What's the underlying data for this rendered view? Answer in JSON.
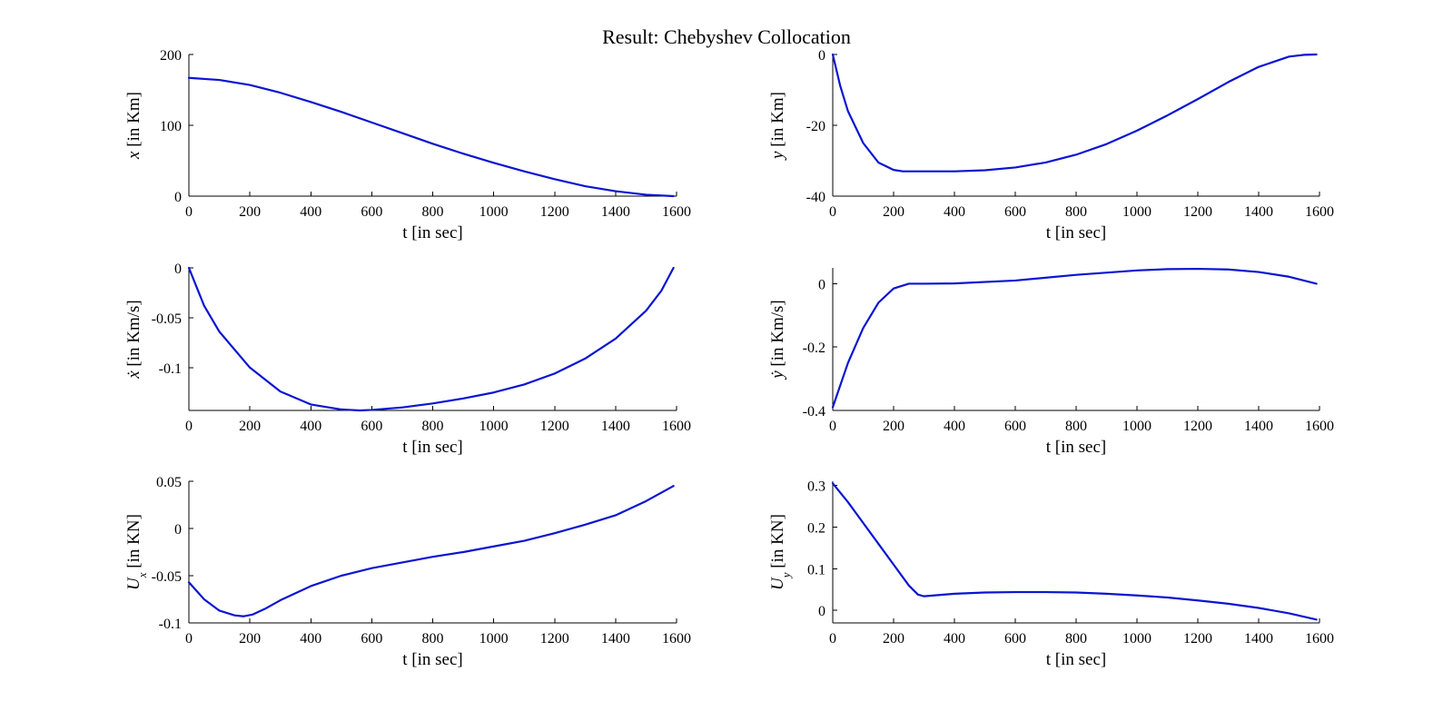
{
  "figure": {
    "title": "Result: Chebyshev Collocation",
    "line_color": "#0a14d2"
  },
  "chart_data": [
    {
      "type": "line",
      "xlabel": "t [in sec]",
      "ylabel": "x [in Km]",
      "ylabel_parts": [
        {
          "t": "x",
          "i": true
        },
        {
          "t": " [in Km]"
        }
      ],
      "xlim": [
        0,
        1600
      ],
      "ylim": [
        0,
        200
      ],
      "xticks": [
        0,
        200,
        400,
        600,
        800,
        1000,
        1200,
        1400,
        1600
      ],
      "yticks": [
        0,
        100,
        200
      ],
      "ytick_labels": [
        "0",
        "100",
        "200"
      ],
      "grid": false,
      "series": [
        {
          "x": [
            0,
            100,
            200,
            300,
            400,
            500,
            600,
            700,
            800,
            900,
            1000,
            1100,
            1200,
            1300,
            1400,
            1500,
            1590
          ],
          "y": [
            167,
            164,
            157,
            146,
            133,
            119,
            104,
            89,
            74,
            60,
            47,
            35,
            24,
            14,
            7,
            2,
            0
          ]
        }
      ]
    },
    {
      "type": "line",
      "xlabel": "t [in sec]",
      "ylabel": "y [in Km]",
      "ylabel_parts": [
        {
          "t": "y",
          "i": true
        },
        {
          "t": " [in Km]"
        }
      ],
      "xlim": [
        0,
        1600
      ],
      "ylim": [
        -40,
        0
      ],
      "xticks": [
        0,
        200,
        400,
        600,
        800,
        1000,
        1200,
        1400,
        1600
      ],
      "yticks": [
        -40,
        -20,
        0
      ],
      "ytick_labels": [
        "-40",
        "-20",
        "0"
      ],
      "grid": false,
      "series": [
        {
          "x": [
            0,
            25,
            50,
            100,
            150,
            200,
            230,
            300,
            400,
            500,
            600,
            700,
            800,
            900,
            1000,
            1100,
            1200,
            1300,
            1400,
            1500,
            1550,
            1590
          ],
          "y": [
            0,
            -9,
            -16,
            -25,
            -30.5,
            -32.6,
            -33,
            -33,
            -33,
            -32.7,
            -31.9,
            -30.5,
            -28.3,
            -25.3,
            -21.5,
            -17.2,
            -12.6,
            -7.8,
            -3.5,
            -0.6,
            -0.1,
            0
          ]
        }
      ]
    },
    {
      "type": "line",
      "xlabel": "t [in sec]",
      "ylabel": "ẋ [in Km/s]",
      "ylabel_parts": [
        {
          "t": "ẋ",
          "i": true
        },
        {
          "t": " [in Km/s]"
        }
      ],
      "xlim": [
        0,
        1600
      ],
      "ylim": [
        -0.143,
        0
      ],
      "xticks": [
        0,
        200,
        400,
        600,
        800,
        1000,
        1200,
        1400,
        1600
      ],
      "yticks": [
        -0.1,
        -0.05,
        0
      ],
      "ytick_labels": [
        "-0.1",
        "-0.05",
        "0"
      ],
      "grid": false,
      "series": [
        {
          "x": [
            0,
            50,
            100,
            200,
            300,
            400,
            500,
            560,
            600,
            700,
            800,
            900,
            1000,
            1100,
            1200,
            1300,
            1400,
            1500,
            1550,
            1590
          ],
          "y": [
            0,
            -0.038,
            -0.064,
            -0.1,
            -0.124,
            -0.137,
            -0.142,
            -0.143,
            -0.1425,
            -0.14,
            -0.136,
            -0.131,
            -0.125,
            -0.117,
            -0.106,
            -0.091,
            -0.071,
            -0.043,
            -0.023,
            0
          ]
        }
      ]
    },
    {
      "type": "line",
      "xlabel": "t [in sec]",
      "ylabel": "ẏ [in Km/s]",
      "ylabel_parts": [
        {
          "t": "ẏ",
          "i": true
        },
        {
          "t": " [in Km/s]"
        }
      ],
      "xlim": [
        0,
        1600
      ],
      "ylim": [
        -0.4,
        0.05
      ],
      "xticks": [
        0,
        200,
        400,
        600,
        800,
        1000,
        1200,
        1400,
        1600
      ],
      "yticks": [
        -0.4,
        -0.2,
        0
      ],
      "ytick_labels": [
        "-0.4",
        "-0.2",
        "0"
      ],
      "grid": false,
      "series": [
        {
          "x": [
            0,
            50,
            100,
            150,
            200,
            250,
            300,
            400,
            600,
            800,
            1000,
            1100,
            1200,
            1300,
            1400,
            1500,
            1590
          ],
          "y": [
            -0.39,
            -0.25,
            -0.14,
            -0.06,
            -0.015,
            0,
            0,
            0.001,
            0.01,
            0.028,
            0.042,
            0.046,
            0.047,
            0.045,
            0.037,
            0.022,
            0
          ]
        }
      ]
    },
    {
      "type": "line",
      "xlabel": "t [in sec]",
      "ylabel": "Ux [in KN]",
      "ylabel_parts": [
        {
          "t": "U",
          "i": true
        },
        {
          "t": "x",
          "i": true,
          "sub": true
        },
        {
          "t": " [in KN]"
        }
      ],
      "xlim": [
        0,
        1600
      ],
      "ylim": [
        -0.1,
        0.05
      ],
      "xticks": [
        0,
        200,
        400,
        600,
        800,
        1000,
        1200,
        1400,
        1600
      ],
      "yticks": [
        -0.1,
        -0.05,
        0,
        0.05
      ],
      "ytick_labels": [
        "-0.1",
        "-0.05",
        "0",
        "0.05"
      ],
      "grid": false,
      "series": [
        {
          "x": [
            0,
            50,
            100,
            150,
            180,
            210,
            250,
            300,
            400,
            500,
            600,
            700,
            800,
            900,
            1000,
            1100,
            1200,
            1300,
            1400,
            1500,
            1590
          ],
          "y": [
            -0.057,
            -0.075,
            -0.087,
            -0.092,
            -0.093,
            -0.091,
            -0.085,
            -0.076,
            -0.061,
            -0.05,
            -0.042,
            -0.036,
            -0.03,
            -0.025,
            -0.019,
            -0.013,
            -0.005,
            0.004,
            0.014,
            0.029,
            0.045
          ]
        }
      ]
    },
    {
      "type": "line",
      "xlabel": "t [in sec]",
      "ylabel": "Uy [in KN]",
      "ylabel_parts": [
        {
          "t": "U",
          "i": true
        },
        {
          "t": "y",
          "i": true,
          "sub": true
        },
        {
          "t": " [in KN]"
        }
      ],
      "xlim": [
        0,
        1600
      ],
      "ylim": [
        -0.03,
        0.31
      ],
      "xticks": [
        0,
        200,
        400,
        600,
        800,
        1000,
        1200,
        1400,
        1600
      ],
      "yticks": [
        0,
        0.1,
        0.2,
        0.3
      ],
      "ytick_labels": [
        "0",
        "0.1",
        "0.2",
        "0.3"
      ],
      "grid": false,
      "series": [
        {
          "x": [
            0,
            50,
            100,
            150,
            200,
            250,
            280,
            300,
            350,
            400,
            500,
            600,
            700,
            800,
            900,
            1000,
            1100,
            1200,
            1300,
            1400,
            1500,
            1590
          ],
          "y": [
            0.305,
            0.26,
            0.21,
            0.16,
            0.11,
            0.06,
            0.038,
            0.034,
            0.037,
            0.04,
            0.043,
            0.044,
            0.044,
            0.043,
            0.04,
            0.036,
            0.031,
            0.024,
            0.016,
            0.006,
            -0.007,
            -0.022
          ]
        }
      ]
    }
  ]
}
